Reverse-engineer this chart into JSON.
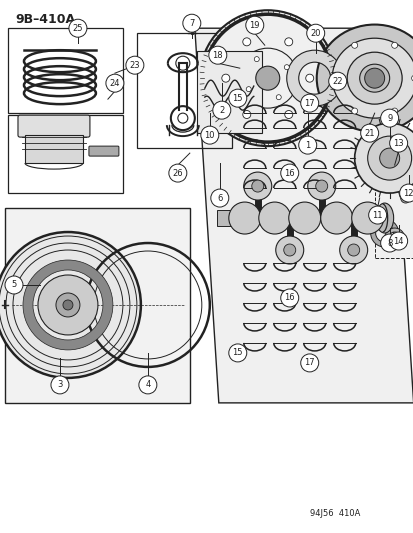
{
  "title": "9B–410A",
  "footer": "94J56  410A",
  "bg_color": "#ffffff",
  "line_color": "#222222",
  "fig_w": 4.14,
  "fig_h": 5.33,
  "dpi": 100
}
